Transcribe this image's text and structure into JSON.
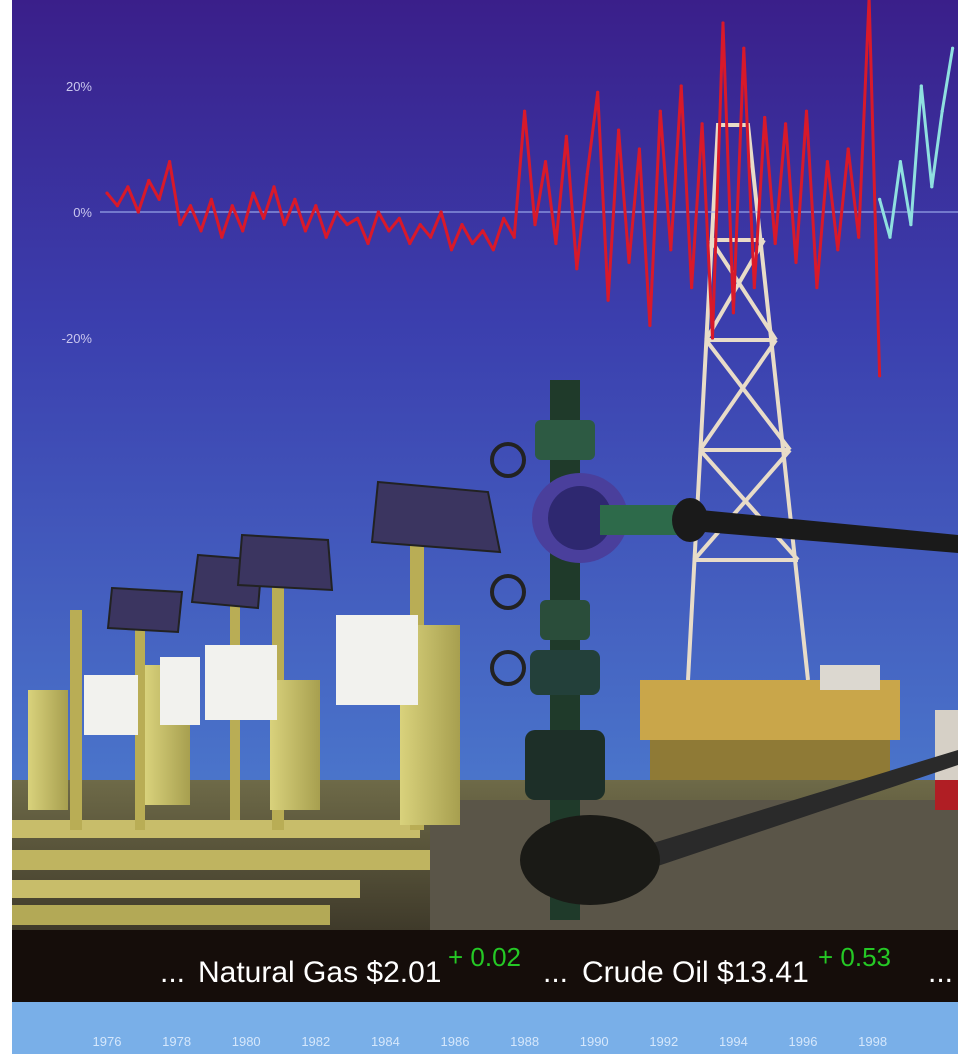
{
  "colors": {
    "sky_top": "#3a1f8a",
    "sky_mid": "#3b3fae",
    "sky_bottom": "#4f86d4",
    "series_main": "#d8192a",
    "series_recent": "#8fe0e0",
    "zero_line": "#9aa8e8",
    "ticker_bg": "#150d0a",
    "ticker_text": "#ffffff",
    "ticker_change": "#25c825",
    "year_strip": "#79afe8",
    "year_text": "#d5e7fb"
  },
  "ticker": {
    "prefix": "...",
    "gas_label": "Natural Gas $2.01",
    "gas_change": "+ 0.02",
    "sep": "...",
    "oil_label": "Crude Oil $13.41",
    "oil_change": "+ 0.53",
    "suffix": "..."
  },
  "photo": {
    "items": [
      "solar-powered-gas-meter-icon",
      "wellhead-valve-icon",
      "drilling-rig-icon",
      "pipeline-icon"
    ]
  },
  "chart_data": {
    "type": "line",
    "title": "",
    "xlabel": "",
    "ylabel": "",
    "y_ticks": [
      "20%",
      "0%",
      "-20%"
    ],
    "y_tick_values": [
      20,
      0,
      -20
    ],
    "ylim": [
      -30,
      30
    ],
    "xlim": [
      1975.5,
      2000.3
    ],
    "x_ticks": [
      "1976",
      "1978",
      "1980",
      "1982",
      "1984",
      "1986",
      "1988",
      "1990",
      "1992",
      "1994",
      "1996",
      "1998"
    ],
    "x_tick_values": [
      1976,
      1978,
      1980,
      1982,
      1984,
      1986,
      1988,
      1990,
      1992,
      1994,
      1996,
      1998
    ],
    "grid": false,
    "legend": "none",
    "series": [
      {
        "color": "#d8192a",
        "x": [
          1976.0,
          1976.3,
          1976.6,
          1976.9,
          1977.2,
          1977.5,
          1977.8,
          1978.1,
          1978.4,
          1978.7,
          1979.0,
          1979.3,
          1979.6,
          1979.9,
          1980.2,
          1980.5,
          1980.8,
          1981.1,
          1981.4,
          1981.7,
          1982.0,
          1982.3,
          1982.6,
          1982.9,
          1983.2,
          1983.5,
          1983.8,
          1984.1,
          1984.4,
          1984.7,
          1985.0,
          1985.3,
          1985.6,
          1985.9,
          1986.2,
          1986.5,
          1986.8,
          1987.1,
          1987.4,
          1987.7,
          1988.0,
          1988.3,
          1988.6,
          1988.9,
          1989.2,
          1989.5,
          1989.8,
          1990.1,
          1990.4,
          1990.7,
          1991.0,
          1991.3,
          1991.6,
          1991.9,
          1992.2,
          1992.5,
          1992.8,
          1993.1,
          1993.4,
          1993.7,
          1994.0,
          1994.3,
          1994.6,
          1994.9,
          1995.2,
          1995.5,
          1995.8,
          1996.1,
          1996.4,
          1996.7,
          1997.0,
          1997.3,
          1997.6,
          1997.9,
          1998.2
        ],
        "y": [
          3,
          1,
          4,
          0,
          5,
          2,
          8,
          -2,
          1,
          -3,
          2,
          -4,
          1,
          -3,
          3,
          -1,
          4,
          -2,
          2,
          -3,
          1,
          -4,
          0,
          -2,
          -1,
          -5,
          0,
          -3,
          -1,
          -5,
          -2,
          -4,
          0,
          -6,
          -2,
          -5,
          -3,
          -6,
          -1,
          -4,
          16,
          -2,
          8,
          -5,
          12,
          -9,
          6,
          19,
          -14,
          13,
          -8,
          10,
          -18,
          16,
          -6,
          20,
          -12,
          14,
          -20,
          30,
          -16,
          26,
          -12,
          15,
          -5,
          14,
          -8,
          16,
          -12,
          8,
          -6,
          10,
          -4,
          34,
          -26
        ],
        "name": ""
      },
      {
        "color": "#8fe0e0",
        "x": [
          1998.2,
          1998.5,
          1998.8,
          1999.1,
          1999.4,
          1999.7,
          2000.0,
          2000.3
        ],
        "y": [
          2,
          -4,
          8,
          -2,
          20,
          4,
          16,
          26
        ],
        "name": ""
      }
    ]
  }
}
